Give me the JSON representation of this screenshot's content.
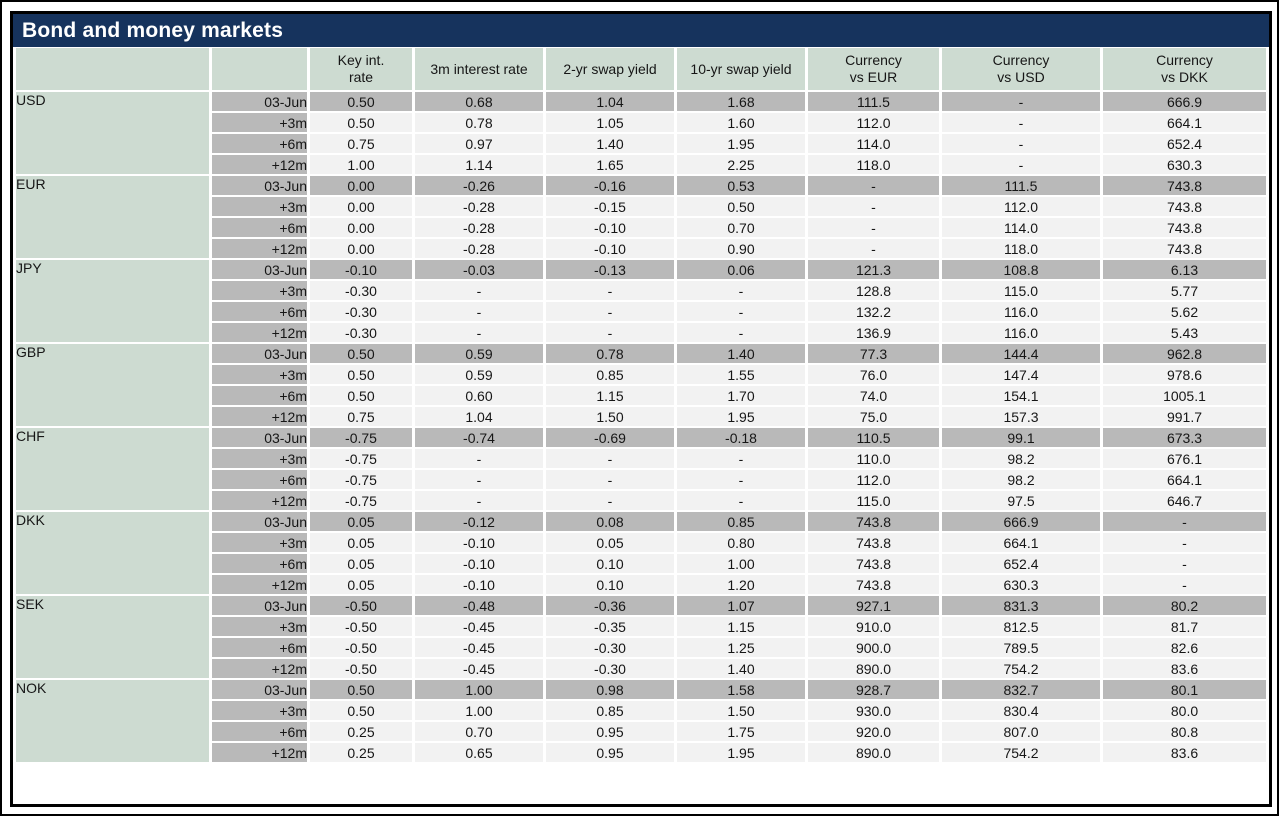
{
  "title": "Bond and money markets",
  "colors": {
    "title_bar": "#16335d",
    "title_text": "#ffffff",
    "header_green": "#cddbd1",
    "row_gray": "#b9b9b9",
    "row_light": "#f2f2f2",
    "border_black": "#000000"
  },
  "chart_data": {
    "type": "table",
    "title": "Bond and money markets",
    "column_headers": [
      "Key int. rate",
      "3m interest rate",
      "2-yr swap yield",
      "10-yr swap yield",
      "Currency vs EUR",
      "Currency vs USD",
      "Currency vs DKK"
    ],
    "header_lines": [
      [
        "Key int.",
        "rate"
      ],
      [
        "3m interest rate"
      ],
      [
        "2-yr swap yield"
      ],
      [
        "10-yr swap yield"
      ],
      [
        "Currency",
        "vs EUR"
      ],
      [
        "Currency",
        "vs USD"
      ],
      [
        "Currency",
        "vs DKK"
      ]
    ],
    "row_labels": [
      "03-Jun",
      "+3m",
      "+6m",
      "+12m"
    ],
    "groups": [
      {
        "currency": "USD",
        "rows": [
          {
            "label": "03-Jun",
            "values": [
              "0.50",
              "0.68",
              "1.04",
              "1.68",
              "111.5",
              "-",
              "666.9"
            ]
          },
          {
            "label": "+3m",
            "values": [
              "0.50",
              "0.78",
              "1.05",
              "1.60",
              "112.0",
              "-",
              "664.1"
            ]
          },
          {
            "label": "+6m",
            "values": [
              "0.75",
              "0.97",
              "1.40",
              "1.95",
              "114.0",
              "-",
              "652.4"
            ]
          },
          {
            "label": "+12m",
            "values": [
              "1.00",
              "1.14",
              "1.65",
              "2.25",
              "118.0",
              "-",
              "630.3"
            ]
          }
        ]
      },
      {
        "currency": "EUR",
        "rows": [
          {
            "label": "03-Jun",
            "values": [
              "0.00",
              "-0.26",
              "-0.16",
              "0.53",
              "-",
              "111.5",
              "743.8"
            ]
          },
          {
            "label": "+3m",
            "values": [
              "0.00",
              "-0.28",
              "-0.15",
              "0.50",
              "-",
              "112.0",
              "743.8"
            ]
          },
          {
            "label": "+6m",
            "values": [
              "0.00",
              "-0.28",
              "-0.10",
              "0.70",
              "-",
              "114.0",
              "743.8"
            ]
          },
          {
            "label": "+12m",
            "values": [
              "0.00",
              "-0.28",
              "-0.10",
              "0.90",
              "-",
              "118.0",
              "743.8"
            ]
          }
        ]
      },
      {
        "currency": "JPY",
        "rows": [
          {
            "label": "03-Jun",
            "values": [
              "-0.10",
              "-0.03",
              "-0.13",
              "0.06",
              "121.3",
              "108.8",
              "6.13"
            ]
          },
          {
            "label": "+3m",
            "values": [
              "-0.30",
              "-",
              "-",
              "-",
              "128.8",
              "115.0",
              "5.77"
            ]
          },
          {
            "label": "+6m",
            "values": [
              "-0.30",
              "-",
              "-",
              "-",
              "132.2",
              "116.0",
              "5.62"
            ]
          },
          {
            "label": "+12m",
            "values": [
              "-0.30",
              "-",
              "-",
              "-",
              "136.9",
              "116.0",
              "5.43"
            ]
          }
        ]
      },
      {
        "currency": "GBP",
        "rows": [
          {
            "label": "03-Jun",
            "values": [
              "0.50",
              "0.59",
              "0.78",
              "1.40",
              "77.3",
              "144.4",
              "962.8"
            ]
          },
          {
            "label": "+3m",
            "values": [
              "0.50",
              "0.59",
              "0.85",
              "1.55",
              "76.0",
              "147.4",
              "978.6"
            ]
          },
          {
            "label": "+6m",
            "values": [
              "0.50",
              "0.60",
              "1.15",
              "1.70",
              "74.0",
              "154.1",
              "1005.1"
            ]
          },
          {
            "label": "+12m",
            "values": [
              "0.75",
              "1.04",
              "1.50",
              "1.95",
              "75.0",
              "157.3",
              "991.7"
            ]
          }
        ]
      },
      {
        "currency": "CHF",
        "rows": [
          {
            "label": "03-Jun",
            "values": [
              "-0.75",
              "-0.74",
              "-0.69",
              "-0.18",
              "110.5",
              "99.1",
              "673.3"
            ]
          },
          {
            "label": "+3m",
            "values": [
              "-0.75",
              "-",
              "-",
              "-",
              "110.0",
              "98.2",
              "676.1"
            ]
          },
          {
            "label": "+6m",
            "values": [
              "-0.75",
              "-",
              "-",
              "-",
              "112.0",
              "98.2",
              "664.1"
            ]
          },
          {
            "label": "+12m",
            "values": [
              "-0.75",
              "-",
              "-",
              "-",
              "115.0",
              "97.5",
              "646.7"
            ]
          }
        ]
      },
      {
        "currency": "DKK",
        "rows": [
          {
            "label": "03-Jun",
            "values": [
              "0.05",
              "-0.12",
              "0.08",
              "0.85",
              "743.8",
              "666.9",
              "-"
            ]
          },
          {
            "label": "+3m",
            "values": [
              "0.05",
              "-0.10",
              "0.05",
              "0.80",
              "743.8",
              "664.1",
              "-"
            ]
          },
          {
            "label": "+6m",
            "values": [
              "0.05",
              "-0.10",
              "0.10",
              "1.00",
              "743.8",
              "652.4",
              "-"
            ]
          },
          {
            "label": "+12m",
            "values": [
              "0.05",
              "-0.10",
              "0.10",
              "1.20",
              "743.8",
              "630.3",
              "-"
            ]
          }
        ]
      },
      {
        "currency": "SEK",
        "rows": [
          {
            "label": "03-Jun",
            "values": [
              "-0.50",
              "-0.48",
              "-0.36",
              "1.07",
              "927.1",
              "831.3",
              "80.2"
            ]
          },
          {
            "label": "+3m",
            "values": [
              "-0.50",
              "-0.45",
              "-0.35",
              "1.15",
              "910.0",
              "812.5",
              "81.7"
            ]
          },
          {
            "label": "+6m",
            "values": [
              "-0.50",
              "-0.45",
              "-0.30",
              "1.25",
              "900.0",
              "789.5",
              "82.6"
            ]
          },
          {
            "label": "+12m",
            "values": [
              "-0.50",
              "-0.45",
              "-0.30",
              "1.40",
              "890.0",
              "754.2",
              "83.6"
            ]
          }
        ]
      },
      {
        "currency": "NOK",
        "rows": [
          {
            "label": "03-Jun",
            "values": [
              "0.50",
              "1.00",
              "0.98",
              "1.58",
              "928.7",
              "832.7",
              "80.1"
            ]
          },
          {
            "label": "+3m",
            "values": [
              "0.50",
              "1.00",
              "0.85",
              "1.50",
              "930.0",
              "830.4",
              "80.0"
            ]
          },
          {
            "label": "+6m",
            "values": [
              "0.25",
              "0.70",
              "0.95",
              "1.75",
              "920.0",
              "807.0",
              "80.8"
            ]
          },
          {
            "label": "+12m",
            "values": [
              "0.25",
              "0.65",
              "0.95",
              "1.95",
              "890.0",
              "754.2",
              "83.6"
            ]
          }
        ]
      }
    ]
  }
}
